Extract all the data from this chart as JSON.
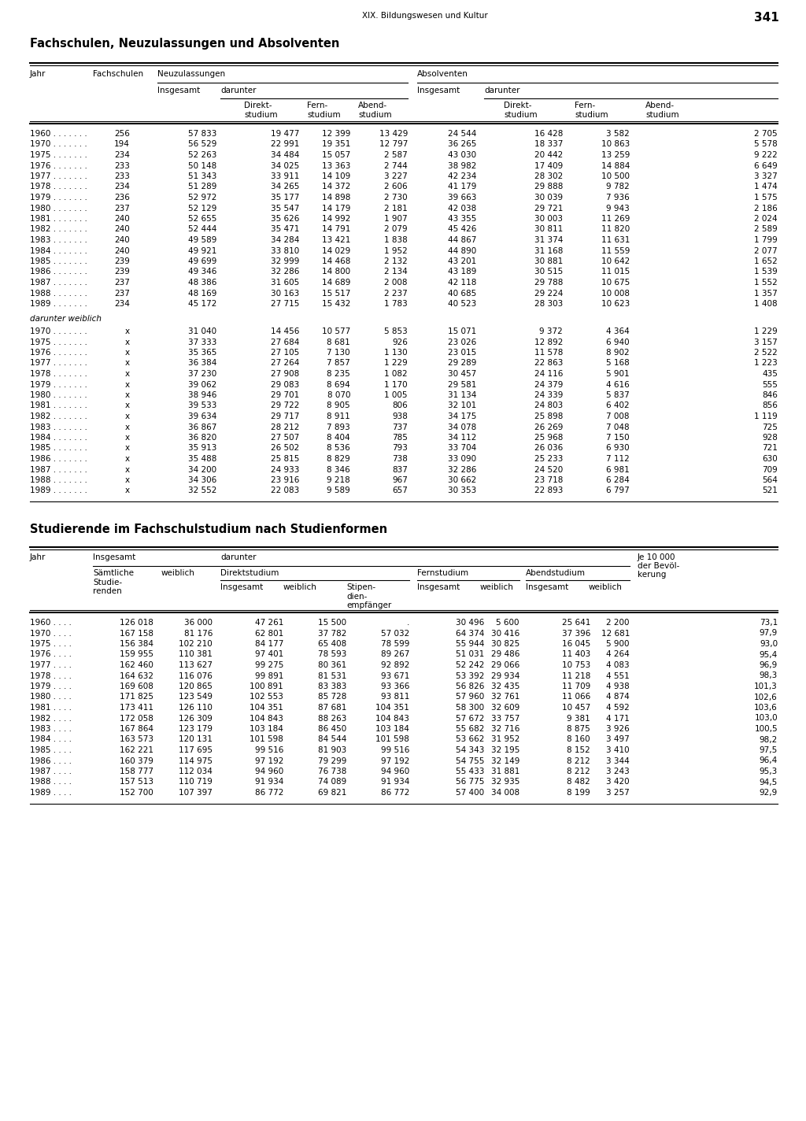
{
  "page_header": "XIX. Bildungswesen und Kultur",
  "page_number": "341",
  "title1": "Fachschulen, Neuzulassungen und Absolventen",
  "title2": "Studierende im Fachschulstudium nach Studienformen",
  "table1_data": [
    [
      "1960 . . . . . . .",
      "256",
      "57 833",
      "19 477",
      "12 399",
      "13 429",
      "24 544",
      "16 428",
      "3 582",
      "2 705"
    ],
    [
      "1970 . . . . . . .",
      "194",
      "56 529",
      "22 991",
      "19 351",
      "12 797",
      "36 265",
      "18 337",
      "10 863",
      "5 578"
    ],
    [
      "1975 . . . . . . .",
      "234",
      "52 263",
      "34 484",
      "15 057",
      "2 587",
      "43 030",
      "20 442",
      "13 259",
      "9 222"
    ],
    [
      "1976 . . . . . . .",
      "233",
      "50 148",
      "34 025",
      "13 363",
      "2 744",
      "38 982",
      "17 409",
      "14 884",
      "6 649"
    ],
    [
      "1977 . . . . . . .",
      "233",
      "51 343",
      "33 911",
      "14 109",
      "3 227",
      "42 234",
      "28 302",
      "10 500",
      "3 327"
    ],
    [
      "1978 . . . . . . .",
      "234",
      "51 289",
      "34 265",
      "14 372",
      "2 606",
      "41 179",
      "29 888",
      "9 782",
      "1 474"
    ],
    [
      "1979 . . . . . . .",
      "236",
      "52 972",
      "35 177",
      "14 898",
      "2 730",
      "39 663",
      "30 039",
      "7 936",
      "1 575"
    ],
    [
      "1980 . . . . . . .",
      "237",
      "52 129",
      "35 547",
      "14 179",
      "2 181",
      "42 038",
      "29 721",
      "9 943",
      "2 186"
    ],
    [
      "1981 . . . . . . .",
      "240",
      "52 655",
      "35 626",
      "14 992",
      "1 907",
      "43 355",
      "30 003",
      "11 269",
      "2 024"
    ],
    [
      "1982 . . . . . . .",
      "240",
      "52 444",
      "35 471",
      "14 791",
      "2 079",
      "45 426",
      "30 811",
      "11 820",
      "2 589"
    ],
    [
      "1983 . . . . . . .",
      "240",
      "49 589",
      "34 284",
      "13 421",
      "1 838",
      "44 867",
      "31 374",
      "11 631",
      "1 799"
    ],
    [
      "1984 . . . . . . .",
      "240",
      "49 921",
      "33 810",
      "14 029",
      "1 952",
      "44 890",
      "31 168",
      "11 559",
      "2 077"
    ],
    [
      "1985 . . . . . . .",
      "239",
      "49 699",
      "32 999",
      "14 468",
      "2 132",
      "43 201",
      "30 881",
      "10 642",
      "1 652"
    ],
    [
      "1986 . . . . . . .",
      "239",
      "49 346",
      "32 286",
      "14 800",
      "2 134",
      "43 189",
      "30 515",
      "11 015",
      "1 539"
    ],
    [
      "1987 . . . . . . .",
      "237",
      "48 386",
      "31 605",
      "14 689",
      "2 008",
      "42 118",
      "29 788",
      "10 675",
      "1 552"
    ],
    [
      "1988 . . . . . . .",
      "237",
      "48 169",
      "30 163",
      "15 517",
      "2 237",
      "40 685",
      "29 224",
      "10 008",
      "1 357"
    ],
    [
      "1989 . . . . . . .",
      "234",
      "45 172",
      "27 715",
      "15 432",
      "1 783",
      "40 523",
      "28 303",
      "10 623",
      "1 408"
    ]
  ],
  "table1_weiblich_label": "darunter weiblich",
  "table1_weiblich_data": [
    [
      "1970 . . . . . . .",
      "x",
      "31 040",
      "14 456",
      "10 577",
      "5 853",
      "15 071",
      "9 372",
      "4 364",
      "1 229"
    ],
    [
      "1975 . . . . . . .",
      "x",
      "37 333",
      "27 684",
      "8 681",
      "926",
      "23 026",
      "12 892",
      "6 940",
      "3 157"
    ],
    [
      "1976 . . . . . . .",
      "x",
      "35 365",
      "27 105",
      "7 130",
      "1 130",
      "23 015",
      "11 578",
      "8 902",
      "2 522"
    ],
    [
      "1977 . . . . . . .",
      "x",
      "36 384",
      "27 264",
      "7 857",
      "1 229",
      "29 289",
      "22 863",
      "5 168",
      "1 223"
    ],
    [
      "1978 . . . . . . .",
      "x",
      "37 230",
      "27 908",
      "8 235",
      "1 082",
      "30 457",
      "24 116",
      "5 901",
      "435"
    ],
    [
      "1979 . . . . . . .",
      "x",
      "39 062",
      "29 083",
      "8 694",
      "1 170",
      "29 581",
      "24 379",
      "4 616",
      "555"
    ],
    [
      "1980 . . . . . . .",
      "x",
      "38 946",
      "29 701",
      "8 070",
      "1 005",
      "31 134",
      "24 339",
      "5 837",
      "846"
    ],
    [
      "1981 . . . . . . .",
      "x",
      "39 533",
      "29 722",
      "8 905",
      "806",
      "32 101",
      "24 803",
      "6 402",
      "856"
    ],
    [
      "1982 . . . . . . .",
      "x",
      "39 634",
      "29 717",
      "8 911",
      "938",
      "34 175",
      "25 898",
      "7 008",
      "1 119"
    ],
    [
      "1983 . . . . . . .",
      "x",
      "36 867",
      "28 212",
      "7 893",
      "737",
      "34 078",
      "26 269",
      "7 048",
      "725"
    ],
    [
      "1984 . . . . . . .",
      "x",
      "36 820",
      "27 507",
      "8 404",
      "785",
      "34 112",
      "25 968",
      "7 150",
      "928"
    ],
    [
      "1985 . . . . . . .",
      "x",
      "35 913",
      "26 502",
      "8 536",
      "793",
      "33 704",
      "26 036",
      "6 930",
      "721"
    ],
    [
      "1986 . . . . . . .",
      "x",
      "35 488",
      "25 815",
      "8 829",
      "738",
      "33 090",
      "25 233",
      "7 112",
      "630"
    ],
    [
      "1987 . . . . . . .",
      "x",
      "34 200",
      "24 933",
      "8 346",
      "837",
      "32 286",
      "24 520",
      "6 981",
      "709"
    ],
    [
      "1988 . . . . . . .",
      "x",
      "34 306",
      "23 916",
      "9 218",
      "967",
      "30 662",
      "23 718",
      "6 284",
      "564"
    ],
    [
      "1989 . . . . . . .",
      "x",
      "32 552",
      "22 083",
      "9 589",
      "657",
      "30 353",
      "22 893",
      "6 797",
      "521"
    ]
  ],
  "table2_data": [
    [
      "1960 . . . .",
      "126 018",
      "36 000",
      "47 261",
      "15 500",
      ".",
      "30 496",
      "5 600",
      "25 641",
      "2 200",
      "73,1"
    ],
    [
      "1970 . . . .",
      "167 158",
      "81 176",
      "62 801",
      "37 782",
      "57 032",
      "64 374",
      "30 416",
      "37 396",
      "12 681",
      "97,9"
    ],
    [
      "1975 . . . .",
      "156 384",
      "102 210",
      "84 177",
      "65 408",
      "78 599",
      "55 944",
      "30 825",
      "16 045",
      "5 900",
      "93,0"
    ],
    [
      "1976 . . . .",
      "159 955",
      "110 381",
      "97 401",
      "78 593",
      "89 267",
      "51 031",
      "29 486",
      "11 403",
      "4 264",
      "95,4"
    ],
    [
      "1977 . . . .",
      "162 460",
      "113 627",
      "99 275",
      "80 361",
      "92 892",
      "52 242",
      "29 066",
      "10 753",
      "4 083",
      "96,9"
    ],
    [
      "1978 . . . .",
      "164 632",
      "116 076",
      "99 891",
      "81 531",
      "93 671",
      "53 392",
      "29 934",
      "11 218",
      "4 551",
      "98,3"
    ],
    [
      "1979 . . . .",
      "169 608",
      "120 865",
      "100 891",
      "83 383",
      "93 366",
      "56 826",
      "32 435",
      "11 709",
      "4 938",
      "101,3"
    ],
    [
      "1980 . . . .",
      "171 825",
      "123 549",
      "102 553",
      "85 728",
      "93 811",
      "57 960",
      "32 761",
      "11 066",
      "4 874",
      "102,6"
    ],
    [
      "1981 . . . .",
      "173 411",
      "126 110",
      "104 351",
      "87 681",
      "104 351",
      "58 300",
      "32 609",
      "10 457",
      "4 592",
      "103,6"
    ],
    [
      "1982 . . . .",
      "172 058",
      "126 309",
      "104 843",
      "88 263",
      "104 843",
      "57 672",
      "33 757",
      "9 381",
      "4 171",
      "103,0"
    ],
    [
      "1983 . . . .",
      "167 864",
      "123 179",
      "103 184",
      "86 450",
      "103 184",
      "55 682",
      "32 716",
      "8 875",
      "3 926",
      "100,5"
    ],
    [
      "1984 . . . .",
      "163 573",
      "120 131",
      "101 598",
      "84 544",
      "101 598",
      "53 662",
      "31 952",
      "8 160",
      "3 497",
      "98,2"
    ],
    [
      "1985 . . . .",
      "162 221",
      "117 695",
      "99 516",
      "81 903",
      "99 516",
      "54 343",
      "32 195",
      "8 152",
      "3 410",
      "97,5"
    ],
    [
      "1986 . . . .",
      "160 379",
      "114 975",
      "97 192",
      "79 299",
      "97 192",
      "54 755",
      "32 149",
      "8 212",
      "3 344",
      "96,4"
    ],
    [
      "1987 . . . .",
      "158 777",
      "112 034",
      "94 960",
      "76 738",
      "94 960",
      "55 433",
      "31 881",
      "8 212",
      "3 243",
      "95,3"
    ],
    [
      "1988 . . . .",
      "157 513",
      "110 719",
      "91 934",
      "74 089",
      "91 934",
      "56 775",
      "32 935",
      "8 482",
      "3 420",
      "94,5"
    ],
    [
      "1989 . . . .",
      "152 700",
      "107 397",
      "86 772",
      "69 821",
      "86 772",
      "57 400",
      "34 008",
      "8 199",
      "3 257",
      "92,9"
    ]
  ]
}
